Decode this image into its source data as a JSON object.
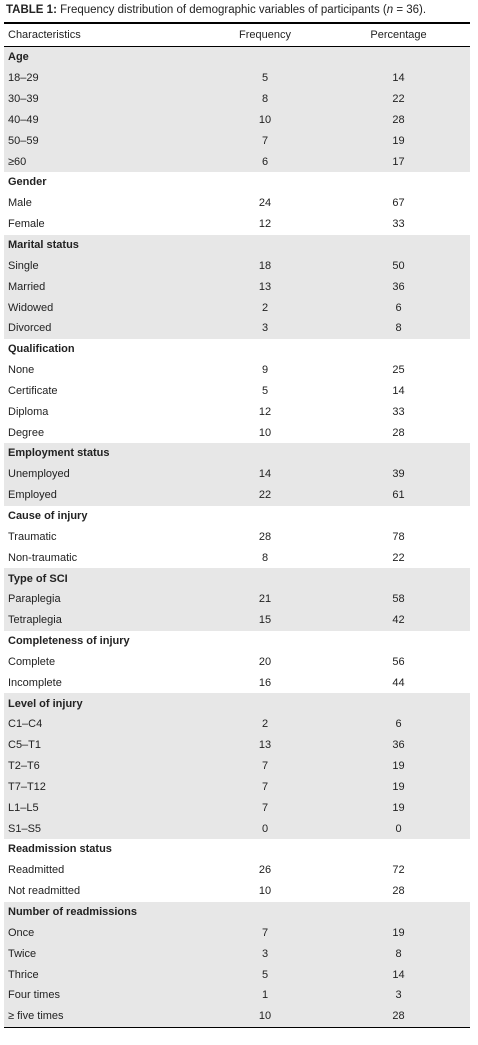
{
  "caption": {
    "label": "TABLE 1:",
    "text": " Frequency distribution of demographic variables of participants (",
    "italic": "n",
    "tail": " = 36)."
  },
  "table": {
    "header": [
      "Characteristics",
      "Frequency",
      "Percentage"
    ],
    "groups": [
      {
        "name": "Age",
        "rows": [
          [
            "18–29",
            5,
            14
          ],
          [
            "30–39",
            8,
            22
          ],
          [
            "40–49",
            10,
            28
          ],
          [
            "50–59",
            7,
            19
          ],
          [
            "≥60",
            6,
            17
          ]
        ]
      },
      {
        "name": "Gender",
        "rows": [
          [
            "Male",
            24,
            67
          ],
          [
            "Female",
            12,
            33
          ]
        ]
      },
      {
        "name": "Marital status",
        "rows": [
          [
            "Single",
            18,
            50
          ],
          [
            "Married",
            13,
            36
          ],
          [
            "Widowed",
            2,
            6
          ],
          [
            "Divorced",
            3,
            8
          ]
        ]
      },
      {
        "name": "Qualification",
        "rows": [
          [
            "None",
            9,
            25
          ],
          [
            "Certificate",
            5,
            14
          ],
          [
            "Diploma",
            12,
            33
          ],
          [
            "Degree",
            10,
            28
          ]
        ]
      },
      {
        "name": "Employment status",
        "rows": [
          [
            "Unemployed",
            14,
            39
          ],
          [
            "Employed",
            22,
            61
          ]
        ]
      },
      {
        "name": "Cause of injury",
        "rows": [
          [
            "Traumatic",
            28,
            78
          ],
          [
            "Non-traumatic",
            8,
            22
          ]
        ]
      },
      {
        "name": "Type of SCI",
        "rows": [
          [
            "Paraplegia",
            21,
            58
          ],
          [
            "Tetraplegia",
            15,
            42
          ]
        ]
      },
      {
        "name": "Completeness of injury",
        "rows": [
          [
            "Complete",
            20,
            56
          ],
          [
            "Incomplete",
            16,
            44
          ]
        ]
      },
      {
        "name": "Level of injury",
        "rows": [
          [
            "C1–C4",
            2,
            6
          ],
          [
            "C5–T1",
            13,
            36
          ],
          [
            "T2–T6",
            7,
            19
          ],
          [
            "T7–T12",
            7,
            19
          ],
          [
            "L1–L5",
            7,
            19
          ],
          [
            "S1–S5",
            0,
            0
          ]
        ]
      },
      {
        "name": "Readmission status",
        "rows": [
          [
            "Readmitted",
            26,
            72
          ],
          [
            "Not readmitted",
            10,
            28
          ]
        ]
      },
      {
        "name": "Number of readmissions",
        "rows": [
          [
            "Once",
            7,
            19
          ],
          [
            "Twice",
            3,
            8
          ],
          [
            "Thrice",
            5,
            14
          ],
          [
            "Four times",
            1,
            3
          ],
          [
            "≥ five times",
            10,
            28
          ]
        ]
      }
    ]
  }
}
